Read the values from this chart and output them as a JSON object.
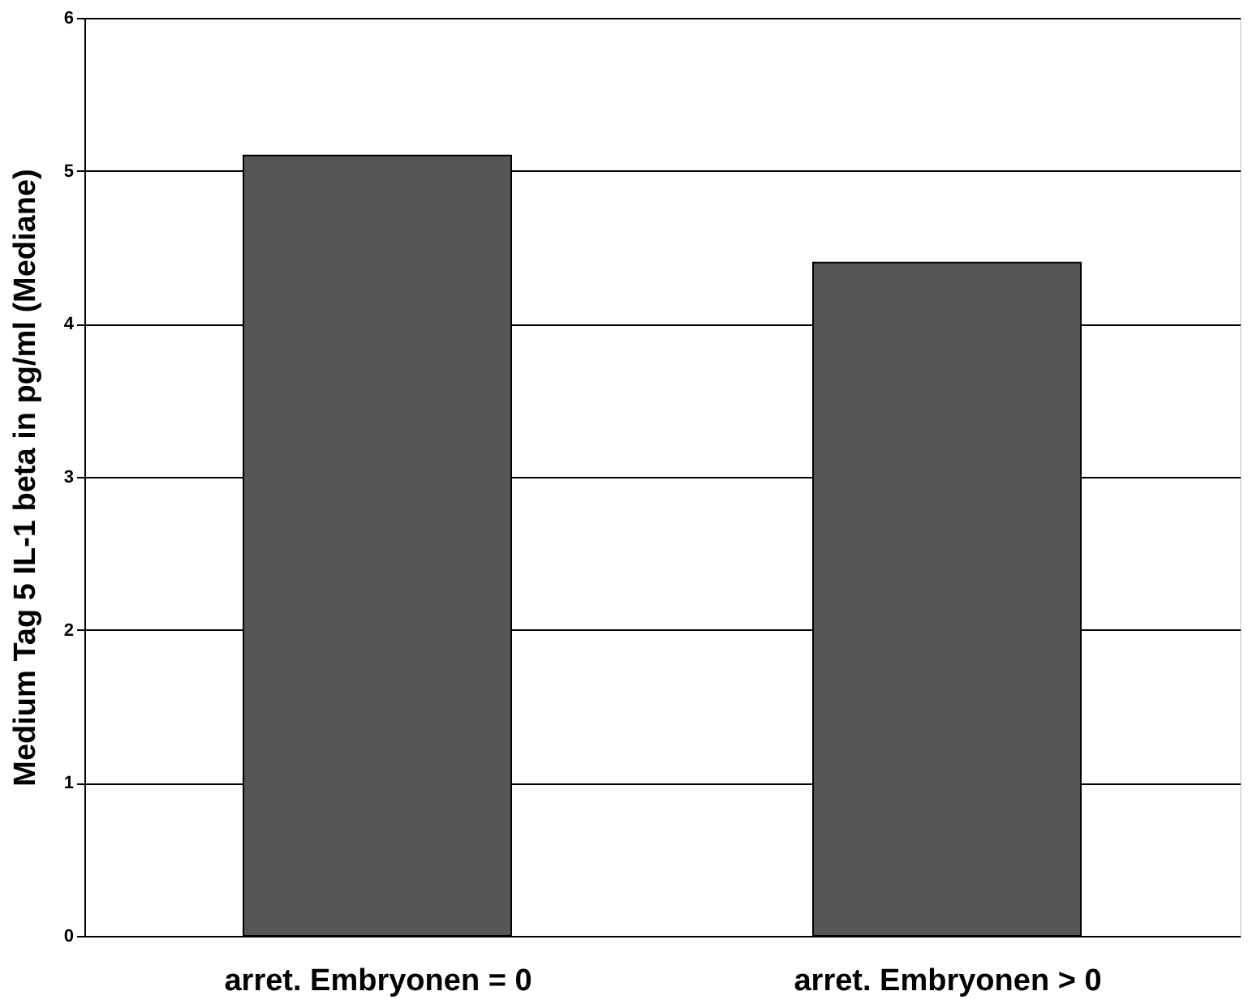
{
  "chart_data": {
    "type": "bar",
    "ylabel": "Medium Tag 5 IL-1 beta in pg/ml (Mediane)",
    "categories": [
      "arret. Embryonen = 0",
      "arret. Embryonen > 0"
    ],
    "values": [
      5.1,
      4.4
    ],
    "color": "#565656",
    "ylim": [
      0,
      6
    ],
    "yticks": [
      0,
      1,
      2,
      3,
      4,
      5,
      6
    ],
    "grid": "y"
  }
}
